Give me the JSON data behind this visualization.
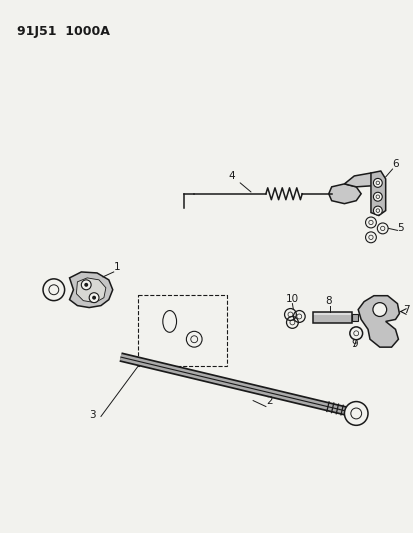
{
  "title": "91J51  1000A",
  "background_color": "#f2f2ee",
  "fig_width": 4.14,
  "fig_height": 5.33,
  "dpi": 100,
  "color": "#1a1a1a",
  "label_fontsize": 7.5,
  "title_fontsize": 9
}
